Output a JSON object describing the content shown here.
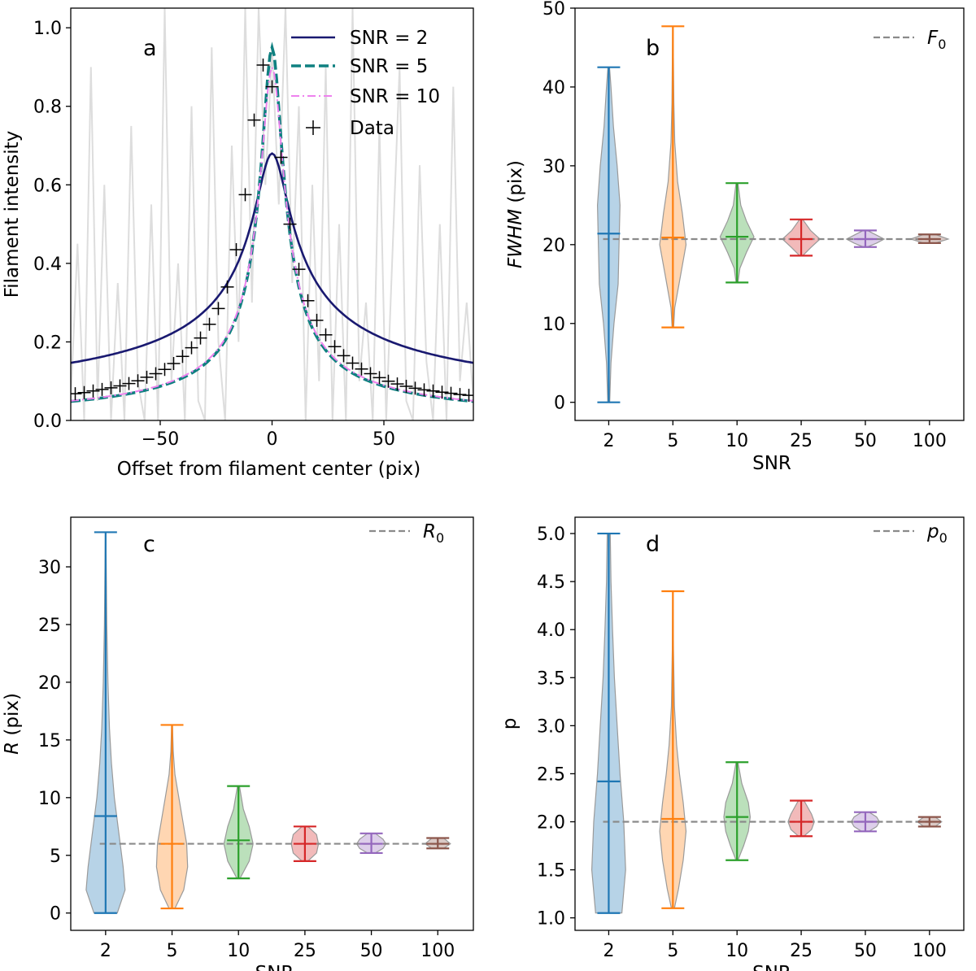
{
  "chart_data": [
    {
      "panel_label": "a",
      "type": "line",
      "xlabel": "Offset from filament center (pix)",
      "ylabel": "Filament intensity",
      "xlim": [
        -90,
        90
      ],
      "ylim": [
        0,
        1.05
      ],
      "xticks": [
        -50,
        0,
        50
      ],
      "yticks": [
        0.0,
        0.2,
        0.4,
        0.6,
        0.8,
        1.0
      ],
      "legend_position": "top-right",
      "series": [
        {
          "name": "SNR = 2",
          "style": "solid",
          "color": "#191970",
          "amplitude": 0.68,
          "R": 7.0,
          "p": 1.6,
          "baseline": 0.0
        },
        {
          "name": "SNR = 5",
          "style": "dashed",
          "color": "#0f8080",
          "amplitude": 0.95,
          "R": 4.6,
          "p": 2.0,
          "baseline": 0.0
        },
        {
          "name": "SNR = 10",
          "style": "dashdot",
          "color": "#ee82ee",
          "amplitude": 0.9,
          "R": 5.0,
          "p": 2.0,
          "baseline": 0.0
        }
      ],
      "data_points": {
        "name": "Data",
        "x": [
          -88,
          -84,
          -80,
          -76,
          -72,
          -68,
          -64,
          -60,
          -56,
          -52,
          -48,
          -44,
          -40,
          -36,
          -32,
          -28,
          -24,
          -20,
          -16,
          -12,
          -8,
          -4,
          0,
          4,
          8,
          12,
          16,
          20,
          24,
          28,
          32,
          36,
          40,
          44,
          48,
          52,
          56,
          60,
          64,
          68,
          72,
          76,
          80,
          84,
          88
        ],
        "y": [
          0.068,
          0.071,
          0.075,
          0.079,
          0.083,
          0.088,
          0.094,
          0.101,
          0.11,
          0.119,
          0.13,
          0.145,
          0.163,
          0.185,
          0.21,
          0.245,
          0.285,
          0.34,
          0.435,
          0.575,
          0.765,
          0.905,
          0.85,
          0.67,
          0.5,
          0.385,
          0.305,
          0.255,
          0.218,
          0.188,
          0.165,
          0.146,
          0.131,
          0.119,
          0.109,
          0.1,
          0.093,
          0.087,
          0.082,
          0.078,
          0.075,
          0.072,
          0.069,
          0.066,
          0.064
        ]
      },
      "noise_series": {
        "name": "noisy profile",
        "color": "#dddddd",
        "x": [
          -90,
          -87,
          -84,
          -81,
          -78,
          -75,
          -72,
          -69,
          -66,
          -63,
          -60,
          -57,
          -54,
          -51,
          -48,
          -45,
          -42,
          -39,
          -36,
          -33,
          -30,
          -27,
          -24,
          -21,
          -18,
          -15,
          -12,
          -9,
          -6,
          -3,
          0,
          3,
          6,
          9,
          12,
          15,
          18,
          21,
          24,
          27,
          30,
          33,
          36,
          39,
          42,
          45,
          48,
          51,
          54,
          57,
          60,
          63,
          66,
          69,
          72,
          75,
          78,
          81,
          84,
          87,
          90
        ],
        "y": [
          0.05,
          0.45,
          0.0,
          0.9,
          0.05,
          0.6,
          0.0,
          0.35,
          0.0,
          0.75,
          0.1,
          0.0,
          0.55,
          0.0,
          1.05,
          0.1,
          0.4,
          0.0,
          0.8,
          0.05,
          0.0,
          0.95,
          0.2,
          0.0,
          0.7,
          0.2,
          1.05,
          0.3,
          1.05,
          0.6,
          0.95,
          0.55,
          1.05,
          0.35,
          0.8,
          0.0,
          0.6,
          0.1,
          0.9,
          0.0,
          0.5,
          0.0,
          1.05,
          0.1,
          0.3,
          0.0,
          0.75,
          0.0,
          0.45,
          0.9,
          0.05,
          0.0,
          0.65,
          0.15,
          0.0,
          0.5,
          0.0,
          0.85,
          0.1,
          0.3,
          0.05
        ]
      }
    },
    {
      "panel_label": "b",
      "type": "violin",
      "xlabel": "SNR",
      "ylabel": "FWHM (pix)",
      "ylim": [
        -2.3,
        50
      ],
      "yticks": [
        0,
        10,
        20,
        30,
        40,
        50
      ],
      "reference": {
        "label": "F",
        "subscript": "0",
        "value": 20.7
      },
      "categories": [
        "2",
        "5",
        "10",
        "25",
        "50",
        "100"
      ],
      "colors": [
        "#1f77b4",
        "#ff7f0e",
        "#2ca02c",
        "#d62728",
        "#9467bd",
        "#8c564b"
      ],
      "violins": [
        {
          "min": 0,
          "max": 42.5,
          "median": 21.4,
          "profile": [
            [
              0,
              0.05
            ],
            [
              5,
              0.12
            ],
            [
              10,
              0.28
            ],
            [
              15,
              0.5
            ],
            [
              20,
              0.55
            ],
            [
              25,
              0.6
            ],
            [
              30,
              0.45
            ],
            [
              35,
              0.25
            ],
            [
              40,
              0.12
            ],
            [
              42.5,
              0.04
            ]
          ]
        },
        {
          "min": 9.5,
          "max": 47.7,
          "median": 20.9,
          "profile": [
            [
              9.5,
              0.04
            ],
            [
              12,
              0.1
            ],
            [
              16,
              0.4
            ],
            [
              20,
              0.7
            ],
            [
              24,
              0.5
            ],
            [
              28,
              0.25
            ],
            [
              33,
              0.1
            ],
            [
              38,
              0.05
            ],
            [
              43,
              0.03
            ],
            [
              47.7,
              0.01
            ]
          ]
        },
        {
          "min": 15.2,
          "max": 27.8,
          "median": 21.0,
          "profile": [
            [
              15.2,
              0.05
            ],
            [
              17,
              0.15
            ],
            [
              19,
              0.5
            ],
            [
              21,
              0.9
            ],
            [
              23,
              0.5
            ],
            [
              25,
              0.2
            ],
            [
              27.8,
              0.05
            ]
          ]
        },
        {
          "min": 18.6,
          "max": 23.2,
          "median": 20.7,
          "profile": [
            [
              18.6,
              0.08
            ],
            [
              19.6,
              0.5
            ],
            [
              20.7,
              1.0
            ],
            [
              21.8,
              0.5
            ],
            [
              23.2,
              0.08
            ]
          ]
        },
        {
          "min": 19.7,
          "max": 21.8,
          "median": 20.7,
          "profile": [
            [
              19.7,
              0.1
            ],
            [
              20.2,
              0.6
            ],
            [
              20.7,
              1.0
            ],
            [
              21.2,
              0.6
            ],
            [
              21.8,
              0.1
            ]
          ]
        },
        {
          "min": 20.2,
          "max": 21.3,
          "median": 20.7,
          "profile": [
            [
              20.2,
              0.3
            ],
            [
              20.7,
              1.0
            ],
            [
              21.3,
              0.3
            ]
          ]
        }
      ]
    },
    {
      "panel_label": "c",
      "type": "violin",
      "xlabel": "SNR",
      "ylabel": "R (pix)",
      "ylim": [
        -1.5,
        34.3
      ],
      "yticks": [
        0,
        5,
        10,
        15,
        20,
        25,
        30
      ],
      "reference": {
        "label": "R",
        "subscript": "0",
        "value": 6.0
      },
      "categories": [
        "2",
        "5",
        "10",
        "25",
        "50",
        "100"
      ],
      "colors": [
        "#1f77b4",
        "#ff7f0e",
        "#2ca02c",
        "#d62728",
        "#9467bd",
        "#8c564b"
      ],
      "violins": [
        {
          "min": 0,
          "max": 33,
          "median": 8.4,
          "profile": [
            [
              0,
              0.6
            ],
            [
              2,
              1.0
            ],
            [
              4,
              0.9
            ],
            [
              6,
              0.75
            ],
            [
              8,
              0.6
            ],
            [
              10,
              0.45
            ],
            [
              13,
              0.3
            ],
            [
              16,
              0.2
            ],
            [
              20,
              0.12
            ],
            [
              25,
              0.06
            ],
            [
              30,
              0.03
            ],
            [
              33,
              0.01
            ]
          ]
        },
        {
          "min": 0.4,
          "max": 16.3,
          "median": 6.0,
          "profile": [
            [
              0.4,
              0.15
            ],
            [
              2,
              0.6
            ],
            [
              4,
              0.8
            ],
            [
              6,
              0.75
            ],
            [
              8,
              0.55
            ],
            [
              10,
              0.35
            ],
            [
              12,
              0.15
            ],
            [
              14,
              0.06
            ],
            [
              16.3,
              0.02
            ]
          ]
        },
        {
          "min": 3.0,
          "max": 11.0,
          "median": 6.3,
          "profile": [
            [
              3,
              0.08
            ],
            [
              4.5,
              0.55
            ],
            [
              6,
              0.75
            ],
            [
              7.5,
              0.55
            ],
            [
              9,
              0.25
            ],
            [
              11,
              0.05
            ]
          ]
        },
        {
          "min": 4.5,
          "max": 7.5,
          "median": 6.0,
          "profile": [
            [
              4.5,
              0.15
            ],
            [
              5.2,
              0.6
            ],
            [
              6,
              0.7
            ],
            [
              6.8,
              0.6
            ],
            [
              7.5,
              0.15
            ]
          ]
        },
        {
          "min": 5.2,
          "max": 6.9,
          "median": 6.0,
          "profile": [
            [
              5.2,
              0.2
            ],
            [
              5.6,
              0.6
            ],
            [
              6,
              0.75
            ],
            [
              6.4,
              0.6
            ],
            [
              6.9,
              0.2
            ]
          ]
        },
        {
          "min": 5.6,
          "max": 6.5,
          "median": 6.0,
          "profile": [
            [
              5.6,
              0.3
            ],
            [
              6,
              0.65
            ],
            [
              6.5,
              0.3
            ]
          ]
        }
      ]
    },
    {
      "panel_label": "d",
      "type": "violin",
      "xlabel": "SNR",
      "ylabel": "p",
      "ylim": [
        0.87,
        5.17
      ],
      "yticks": [
        1.0,
        1.5,
        2.0,
        2.5,
        3.0,
        3.5,
        4.0,
        4.5,
        5.0
      ],
      "reference": {
        "label": "p",
        "subscript": "0",
        "value": 2.0
      },
      "categories": [
        "2",
        "5",
        "10",
        "25",
        "50",
        "100"
      ],
      "colors": [
        "#1f77b4",
        "#ff7f0e",
        "#2ca02c",
        "#d62728",
        "#9467bd",
        "#8c564b"
      ],
      "violins": [
        {
          "min": 1.05,
          "max": 5.0,
          "median": 2.42,
          "profile": [
            [
              1.05,
              0.7
            ],
            [
              1.5,
              0.9
            ],
            [
              2,
              0.8
            ],
            [
              2.5,
              0.6
            ],
            [
              3,
              0.45
            ],
            [
              3.5,
              0.3
            ],
            [
              4,
              0.2
            ],
            [
              4.5,
              0.12
            ],
            [
              5,
              0.08
            ]
          ]
        },
        {
          "min": 1.1,
          "max": 4.4,
          "median": 2.03,
          "profile": [
            [
              1.1,
              0.08
            ],
            [
              1.3,
              0.3
            ],
            [
              1.6,
              0.55
            ],
            [
              1.9,
              0.7
            ],
            [
              2.2,
              0.55
            ],
            [
              2.5,
              0.35
            ],
            [
              2.8,
              0.2
            ],
            [
              3.2,
              0.08
            ],
            [
              3.8,
              0.03
            ],
            [
              4.4,
              0.01
            ]
          ]
        },
        {
          "min": 1.6,
          "max": 2.62,
          "median": 2.05,
          "profile": [
            [
              1.6,
              0.05
            ],
            [
              1.75,
              0.35
            ],
            [
              1.9,
              0.6
            ],
            [
              2.05,
              0.7
            ],
            [
              2.2,
              0.6
            ],
            [
              2.4,
              0.25
            ],
            [
              2.62,
              0.05
            ]
          ]
        },
        {
          "min": 1.85,
          "max": 2.22,
          "median": 2.0,
          "profile": [
            [
              1.85,
              0.15
            ],
            [
              1.92,
              0.55
            ],
            [
              2.0,
              0.7
            ],
            [
              2.08,
              0.55
            ],
            [
              2.22,
              0.15
            ]
          ]
        },
        {
          "min": 1.9,
          "max": 2.1,
          "median": 2.0,
          "profile": [
            [
              1.9,
              0.2
            ],
            [
              1.95,
              0.6
            ],
            [
              2.0,
              0.75
            ],
            [
              2.05,
              0.6
            ],
            [
              2.1,
              0.2
            ]
          ]
        },
        {
          "min": 1.95,
          "max": 2.05,
          "median": 2.0,
          "profile": [
            [
              1.95,
              0.3
            ],
            [
              2.0,
              0.65
            ],
            [
              2.05,
              0.3
            ]
          ]
        }
      ]
    }
  ]
}
